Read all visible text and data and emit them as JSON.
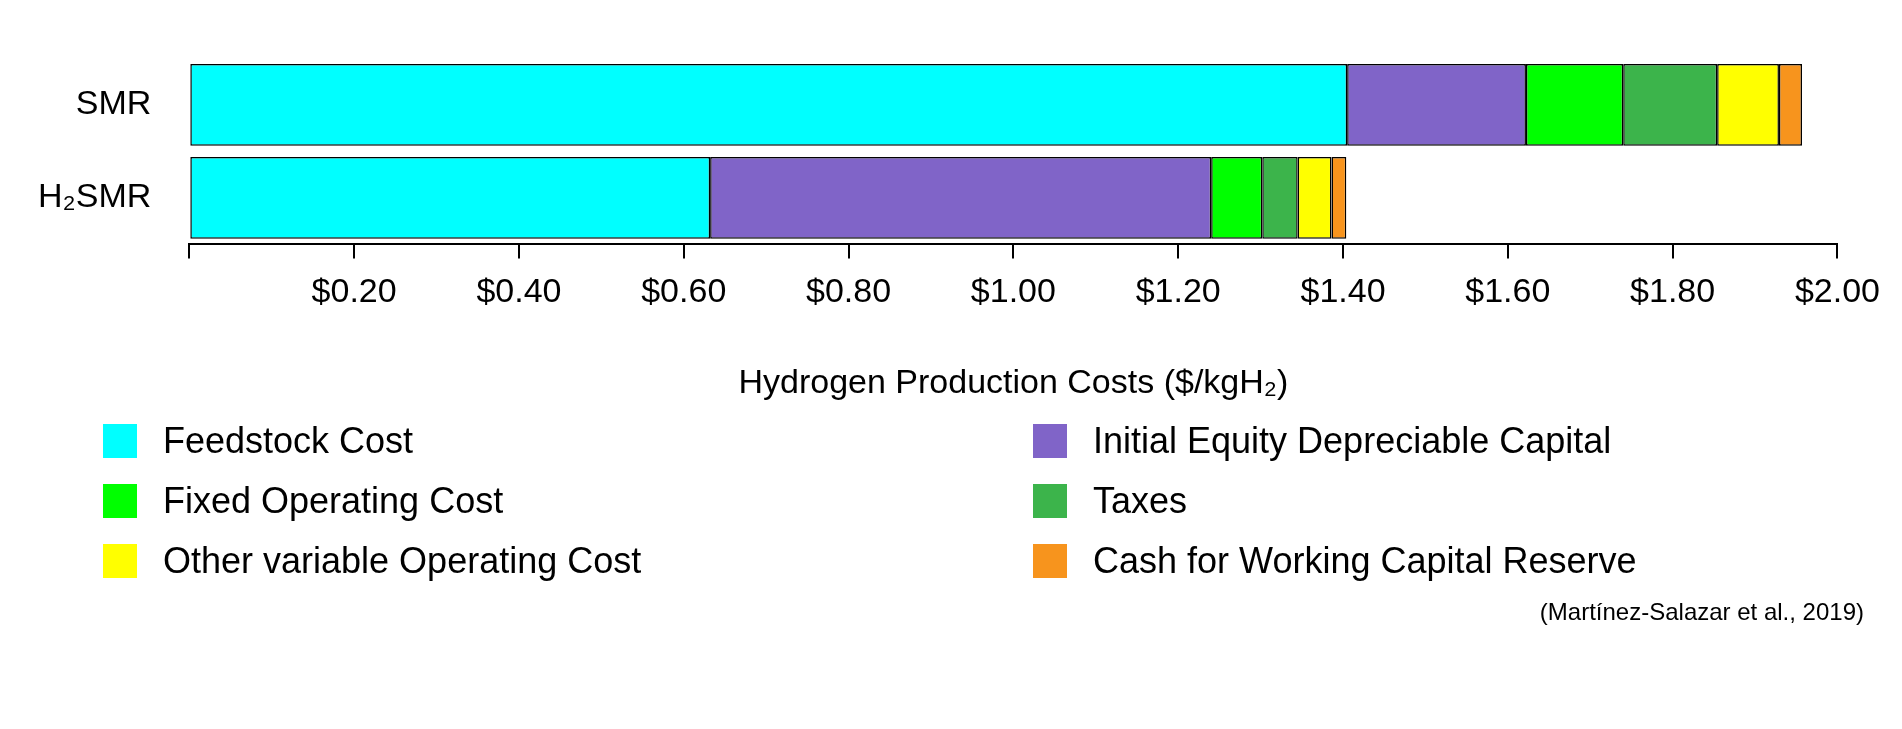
{
  "chart_data": {
    "type": "bar",
    "orientation": "horizontal",
    "stacked": true,
    "categories": [
      "SMR",
      "H₂SMR"
    ],
    "series": [
      {
        "name": "Feedstock Cost",
        "color": "#00ffff",
        "values": [
          1.405,
          0.632
        ]
      },
      {
        "name": "Initial Equity Depreciable Capital",
        "color": "#8064c8",
        "values": [
          0.217,
          0.608
        ]
      },
      {
        "name": "Fixed Operating Cost",
        "color": "#00ff00",
        "values": [
          0.118,
          0.062
        ]
      },
      {
        "name": "Taxes",
        "color": "#3cb44b",
        "values": [
          0.114,
          0.043
        ]
      },
      {
        "name": "Other variable Operating Cost",
        "color": "#ffff00",
        "values": [
          0.075,
          0.041
        ]
      },
      {
        "name": "Cash for Working Capital Reserve",
        "color": "#f7941d",
        "values": [
          0.028,
          0.018
        ]
      }
    ],
    "xlabel": "Hydrogen Production Costs ($/kgH₂)",
    "xlim": [
      0,
      2
    ],
    "xticks": [
      {
        "value": 0,
        "label": null
      },
      {
        "value": 0.2,
        "label": "$0.20"
      },
      {
        "value": 0.4,
        "label": "$0.40"
      },
      {
        "value": 0.6,
        "label": "$0.60"
      },
      {
        "value": 0.8,
        "label": "$0.80"
      },
      {
        "value": 1,
        "label": "$1.00"
      },
      {
        "value": 1.2,
        "label": "$1.20"
      },
      {
        "value": 1.4,
        "label": "$1.40"
      },
      {
        "value": 1.6,
        "label": "$1.60"
      },
      {
        "value": 1.8,
        "label": "$1.80"
      },
      {
        "value": 2,
        "label": "$2.00"
      }
    ],
    "grid": false,
    "legend": "bottom",
    "annotations": [
      "(Martínez-Salazar et al., 2019)"
    ]
  }
}
